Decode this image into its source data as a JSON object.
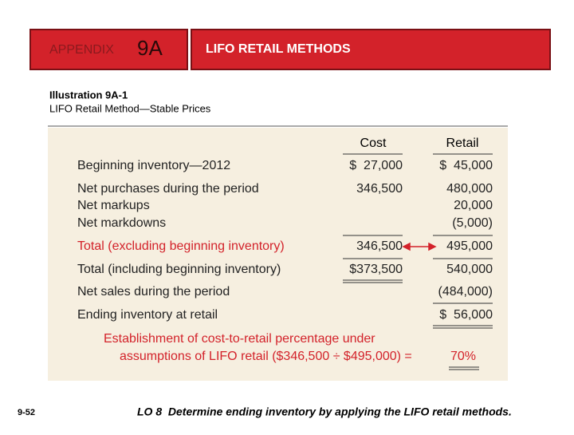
{
  "header": {
    "appendix": "APPENDIX",
    "number": "9A",
    "title": "LIFO RETAIL METHODS"
  },
  "illustration": {
    "label": "Illustration 9A-1",
    "caption": "LIFO Retail Method—Stable Prices"
  },
  "table": {
    "columns": [
      "Cost",
      "Retail"
    ],
    "rows": [
      {
        "label": "Beginning inventory—2012",
        "cost": "$  27,000",
        "retail": "$  45,000"
      },
      {
        "label": "Net purchases during the period",
        "cost": "346,500",
        "retail": "480,000"
      },
      {
        "label": "Net markups",
        "retail": "20,000"
      },
      {
        "label": "Net markdowns",
        "retail": "(5,000)"
      },
      {
        "label": "Total (excluding beginning inventory)",
        "cost": "346,500",
        "retail": "495,000"
      },
      {
        "label": "Total (including beginning inventory)",
        "cost": "$373,500",
        "retail": "540,000"
      },
      {
        "label": "Net sales during the period",
        "retail": "(484,000)"
      },
      {
        "label": "Ending inventory at retail",
        "retail": "$  56,000"
      }
    ]
  },
  "note": {
    "line1": "Establishment of cost-to-retail percentage under",
    "line2": "assumptions of LIFO retail ($346,500 ÷ $495,000) =",
    "result": "70%"
  },
  "footer": {
    "page": "9-52",
    "objective": "LO 8  Determine ending inventory by applying the LIFO retail methods."
  }
}
